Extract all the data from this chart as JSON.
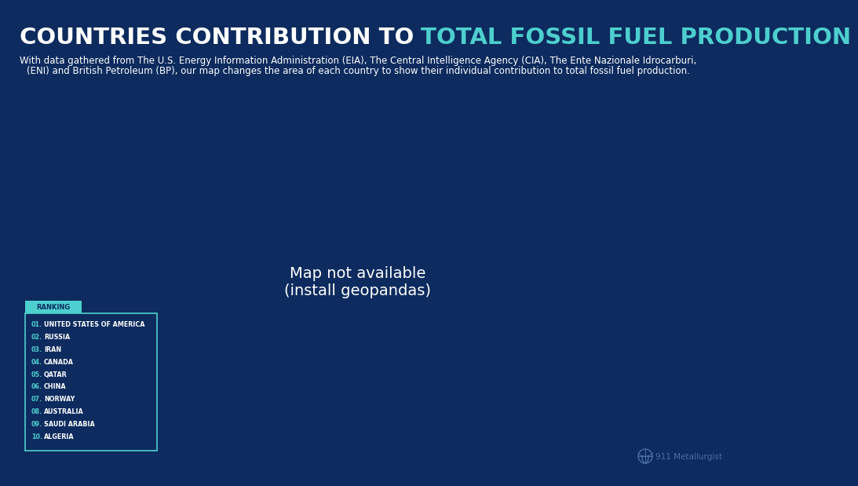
{
  "background_color": "#0d2b5e",
  "title_white": "COUNTRIES CONTRIBUTION TO ",
  "title_teal": "TOTAL FOSSIL FUEL PRODUCTION",
  "subtitle_line1": "With data gathered from The U.S. Energy Information Administration (EIA), The Central Intelligence Agency (CIA), The Ente Nazionale Idrocarburi,",
  "subtitle_line2": "(ENI) and British Petroleum (BP), our map changes the area of each country to show their individual contribution to total fossil fuel production.",
  "title_fontsize": 21,
  "subtitle_fontsize": 8.5,
  "teal_color": "#4dcfcf",
  "white_color": "#ffffff",
  "ranking_title": "RANKING",
  "ranking_items": [
    [
      "01.",
      "UNITED STATES OF AMERICA"
    ],
    [
      "02.",
      "RUSSIA"
    ],
    [
      "03.",
      "IRAN"
    ],
    [
      "04.",
      "CANADA"
    ],
    [
      "05.",
      "QATAR"
    ],
    [
      "06.",
      "CHINA"
    ],
    [
      "07.",
      "NORWAY"
    ],
    [
      "08.",
      "AUSTRALIA"
    ],
    [
      "09.",
      "SAUDI ARABIA"
    ],
    [
      "10.",
      "ALGERIA"
    ]
  ],
  "ranking_number_color": "#4dcfcf",
  "ranking_text_color": "#ffffff",
  "watermark": "911 Metallurgist",
  "watermark_color": "#4a6fa5",
  "C_ORANGE": "#e8834a",
  "C_TEAL": "#4dcfcf",
  "C_YELLOW": "#f5c518",
  "C_PINK": "#f0a07a",
  "C_BLUE": "#4a6fa5",
  "C_PURPLE": "#7b5ea0",
  "C_LTBLUE": "#7ec8e3",
  "C_DKORANGE": "#c05a20"
}
